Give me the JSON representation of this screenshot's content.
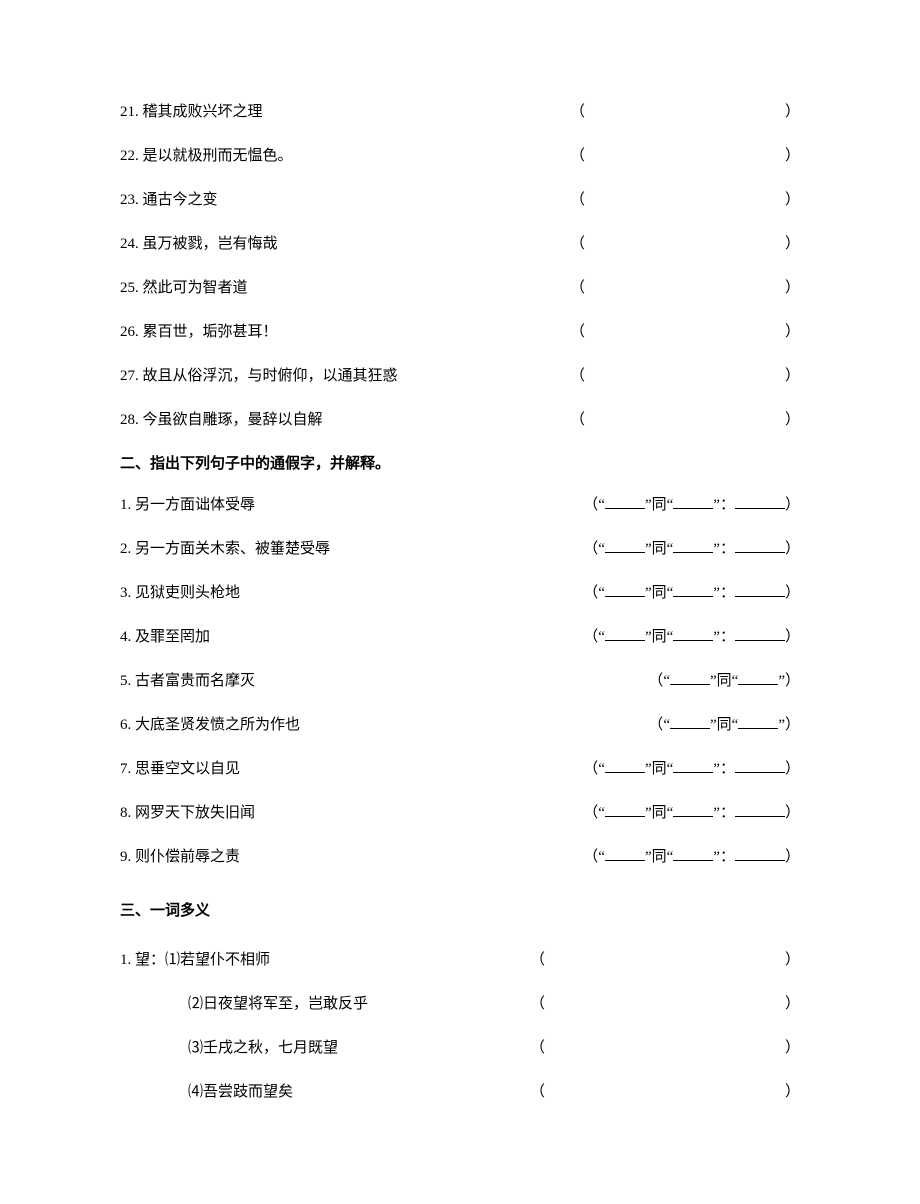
{
  "section1": {
    "items": [
      {
        "num": "21.",
        "text": "稽其成败兴坏之理"
      },
      {
        "num": "22.",
        "text": "是以就极刑而无愠色。"
      },
      {
        "num": "23.",
        "text": "通古今之变"
      },
      {
        "num": "24.",
        "text": "虽万被戮，岂有悔哉"
      },
      {
        "num": "25.",
        "text": "然此可为智者道"
      },
      {
        "num": "26.",
        "text": "累百世，垢弥甚耳！"
      },
      {
        "num": "27.",
        "text": "故且从俗浮沉，与时俯仰，以通其狂惑"
      },
      {
        "num": "28.",
        "text": "今虽欲自雕琢，曼辞以自解"
      }
    ]
  },
  "section2": {
    "title": "二、指出下列句子中的通假字，并解释。",
    "items": [
      {
        "num": "1.",
        "text": "另一方面诎体受辱",
        "hasColon": true,
        "indent": true
      },
      {
        "num": "2.",
        "text": "另一方面关木索、被箠楚受辱",
        "hasColon": true,
        "indent": true
      },
      {
        "num": "3.",
        "text": "见狱吏则头枪地",
        "hasColon": true,
        "indent": false
      },
      {
        "num": "4.",
        "text": "及罪至罔加",
        "hasColon": true,
        "indent": false
      },
      {
        "num": "5.",
        "text": "古者富贵而名摩灭",
        "hasColon": false,
        "indent": false
      },
      {
        "num": "6.",
        "text": "大底圣贤发愤之所为作也",
        "hasColon": false,
        "indent": false
      },
      {
        "num": "7.",
        "text": "思垂空文以自见",
        "hasColon": true,
        "indent": false
      },
      {
        "num": "8.",
        "text": "网罗天下放失旧闻",
        "hasColon": true,
        "indent": false
      },
      {
        "num": "9.",
        "text": "则仆偿前辱之责",
        "hasColon": true,
        "indent": false
      }
    ],
    "templateSame": "同",
    "quoteOpen": "“",
    "quoteClose": "”"
  },
  "section3": {
    "title": "三、一词多义",
    "head": "1. 望：",
    "items": [
      {
        "num": "⑴",
        "text": "若望仆不相师"
      },
      {
        "num": "⑵",
        "text": "日夜望将军至，岂敢反乎"
      },
      {
        "num": "⑶",
        "text": "壬戌之秋，七月既望"
      },
      {
        "num": "⑷",
        "text": "吾尝跂而望矣"
      }
    ]
  },
  "parens": {
    "open": "（",
    "close": "）"
  }
}
